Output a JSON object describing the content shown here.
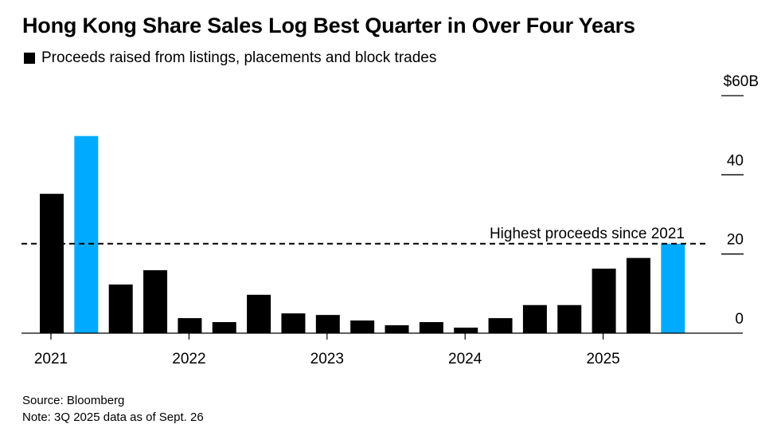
{
  "title": "Hong Kong Share Sales Log Best Quarter in Over Four Years",
  "legend": {
    "label": "Proceeds raised from listings, placements and block trades",
    "swatch_color": "#000000"
  },
  "footer": {
    "source": "Source: Bloomberg",
    "note": "Note: 3Q 2025 data as of Sept. 26"
  },
  "chart_data": {
    "type": "bar",
    "title": "Hong Kong Share Sales Log Best Quarter in Over Four Years",
    "subtitle": "Proceeds raised from listings, placements and block trades",
    "xlabel": "",
    "ylabel": "Proceeds ($B)",
    "ylim": [
      0,
      60
    ],
    "y_ticks": [
      0,
      20,
      40,
      60
    ],
    "y_tick_labels": [
      "0",
      "20",
      "40",
      "$60B"
    ],
    "y_axis_side": "right",
    "grid": false,
    "categories": [
      "1Q 2021",
      "2Q 2021",
      "3Q 2021",
      "4Q 2021",
      "1Q 2022",
      "2Q 2022",
      "3Q 2022",
      "4Q 2022",
      "1Q 2023",
      "2Q 2023",
      "3Q 2023",
      "4Q 2023",
      "1Q 2024",
      "2Q 2024",
      "3Q 2024",
      "4Q 2024",
      "1Q 2025",
      "2Q 2025",
      "3Q 2025"
    ],
    "x_tick_labels": [
      {
        "label": "2021",
        "category_index": 0
      },
      {
        "label": "2022",
        "category_index": 4
      },
      {
        "label": "2023",
        "category_index": 8
      },
      {
        "label": "2024",
        "category_index": 12
      },
      {
        "label": "2025",
        "category_index": 16
      }
    ],
    "series": [
      {
        "name": "Proceeds raised from listings, placements and block trades",
        "values": [
          35.2,
          49.8,
          12.3,
          15.9,
          3.8,
          2.8,
          9.7,
          5.0,
          4.6,
          3.2,
          2.0,
          2.8,
          1.4,
          3.8,
          7.1,
          7.1,
          16.3,
          19.0,
          22.6
        ],
        "highlight_indices": [
          1,
          18
        ]
      }
    ],
    "colors": {
      "default": "#000000",
      "highlight": "#00aaff"
    },
    "reference_line": {
      "value": 22.6,
      "style": "dashed",
      "label": "Highest proceeds since 2021"
    }
  }
}
